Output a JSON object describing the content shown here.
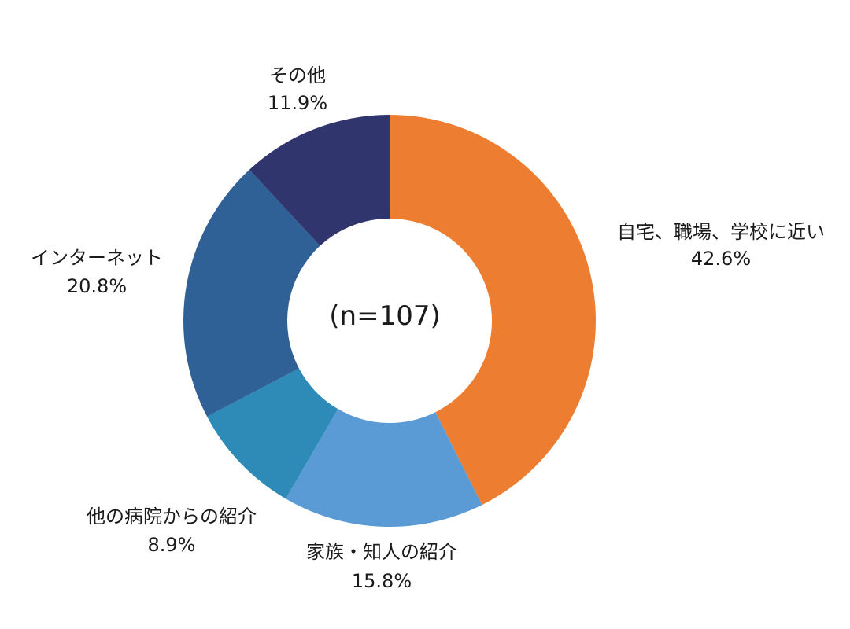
{
  "chart_data": {
    "type": "pie",
    "variant": "donut",
    "center_label": "(n=107)",
    "slices": [
      {
        "label": "自宅、職場、学校に近い",
        "value_label": "42.6%",
        "value": 42.6,
        "color": "#ED7D31"
      },
      {
        "label": "家族・知人の紹介",
        "value_label": "15.8%",
        "value": 15.8,
        "color": "#5B9BD5"
      },
      {
        "label": "他の病院からの紹介",
        "value_label": "8.9%",
        "value": 8.9,
        "color": "#2E8BB8"
      },
      {
        "label": "インターネット",
        "value_label": "20.8%",
        "value": 20.8,
        "color": "#2F6096"
      },
      {
        "label": "その他",
        "value_label": "11.9%",
        "value": 11.9,
        "color": "#31356E"
      }
    ],
    "start": "top",
    "direction": "clockwise",
    "legend": "none"
  }
}
